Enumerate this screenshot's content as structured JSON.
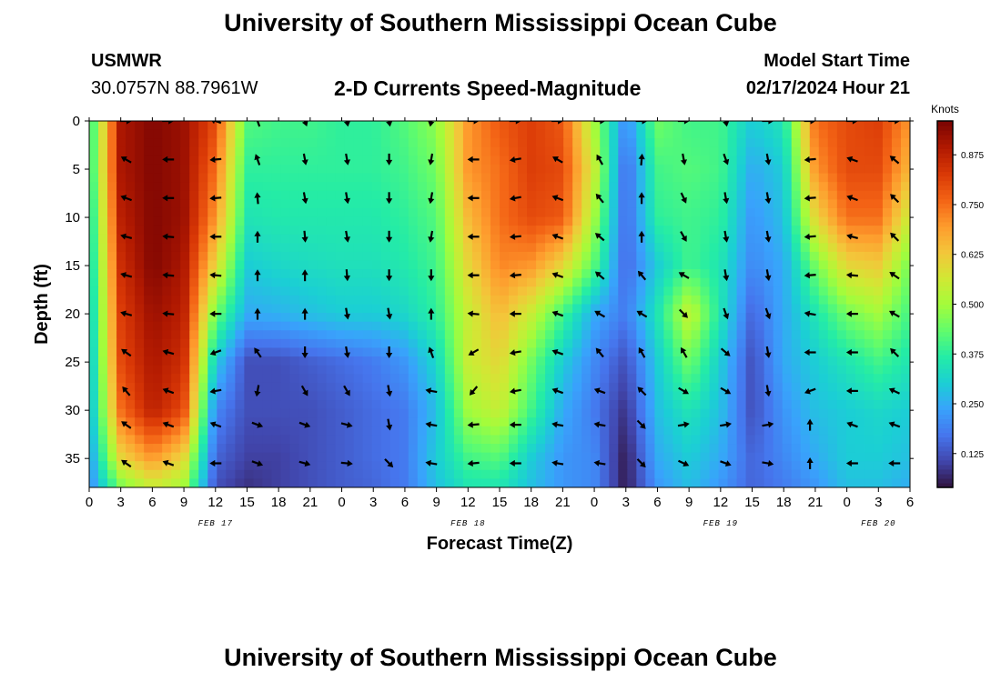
{
  "header": {
    "title": "University of Southern Mississippi Ocean Cube",
    "station": "USMWR",
    "coordinates": "30.0757N  88.7961W",
    "plot_title": "2-D Currents Speed-Magnitude",
    "model_start_label": "Model Start Time",
    "model_start_value": "02/17/2024 Hour 21"
  },
  "footer": {
    "title": "University of Southern Mississippi Ocean Cube"
  },
  "chart_data": {
    "type": "heatmap",
    "title": "2-D Currents Speed-Magnitude",
    "xlabel": "Forecast Time(Z)",
    "ylabel": "Depth (ft)",
    "x_unit": "hours from 00Z Feb 17",
    "xlim": [
      0,
      78
    ],
    "ylim": [
      38,
      0
    ],
    "x_ticks": [
      0,
      3,
      6,
      9,
      12,
      15,
      18,
      21,
      24,
      27,
      30,
      33,
      36,
      39,
      42,
      45,
      48,
      51,
      54,
      57,
      60,
      63,
      66,
      69,
      72,
      75,
      78
    ],
    "x_tick_labels": [
      "0",
      "3",
      "6",
      "9",
      "12",
      "15",
      "18",
      "21",
      "0",
      "3",
      "6",
      "9",
      "12",
      "15",
      "18",
      "21",
      "0",
      "3",
      "6",
      "9",
      "12",
      "15",
      "18",
      "21",
      "0",
      "3",
      "6"
    ],
    "y_ticks": [
      0,
      5,
      10,
      15,
      20,
      25,
      30,
      35
    ],
    "y_tick_labels": [
      "0",
      "5",
      "10",
      "15",
      "20",
      "25",
      "30",
      "35"
    ],
    "date_labels": [
      {
        "text": "FEB 17",
        "hour": 12
      },
      {
        "text": "FEB 18",
        "hour": 36
      },
      {
        "text": "FEB 19",
        "hour": 60
      },
      {
        "text": "FEB 20",
        "hour": 75
      }
    ],
    "colorbar": {
      "label": "Knots",
      "min": 0.04,
      "max": 0.96,
      "ticks": [
        0.125,
        0.25,
        0.375,
        0.5,
        0.625,
        0.75,
        0.875
      ],
      "tick_labels": [
        "0.125",
        "0.250",
        "0.375",
        "0.500",
        "0.625",
        "0.750",
        "0.875"
      ],
      "colors": [
        "#30123b",
        "#4145ab",
        "#4675ed",
        "#39a2fc",
        "#1bcfd4",
        "#24eca6",
        "#61fc6c",
        "#a4fc3b",
        "#d1e834",
        "#f3c63a",
        "#fe9b2d",
        "#f36315",
        "#d93806",
        "#b11901",
        "#7a0403"
      ]
    },
    "speed_field": {
      "units": "knots",
      "times": [
        0,
        3,
        6,
        9,
        12,
        15,
        18,
        21,
        24,
        27,
        30,
        33,
        36,
        39,
        42,
        45,
        48,
        51,
        54,
        57,
        60,
        63,
        66,
        69,
        72,
        75,
        78
      ],
      "depths": [
        0,
        5,
        10,
        15,
        20,
        25,
        30,
        35,
        38
      ],
      "values": [
        [
          0.35,
          0.9,
          0.95,
          0.92,
          0.8,
          0.42,
          0.4,
          0.4,
          0.38,
          0.38,
          0.42,
          0.48,
          0.7,
          0.78,
          0.82,
          0.78,
          0.5,
          0.2,
          0.45,
          0.4,
          0.4,
          0.3,
          0.35,
          0.75,
          0.8,
          0.82,
          0.7
        ],
        [
          0.35,
          0.9,
          0.95,
          0.92,
          0.75,
          0.38,
          0.38,
          0.38,
          0.38,
          0.38,
          0.4,
          0.45,
          0.7,
          0.75,
          0.82,
          0.8,
          0.55,
          0.15,
          0.4,
          0.42,
          0.4,
          0.25,
          0.3,
          0.7,
          0.8,
          0.8,
          0.65
        ],
        [
          0.32,
          0.88,
          0.95,
          0.92,
          0.7,
          0.35,
          0.36,
          0.36,
          0.36,
          0.36,
          0.38,
          0.42,
          0.65,
          0.75,
          0.8,
          0.78,
          0.5,
          0.15,
          0.38,
          0.4,
          0.38,
          0.22,
          0.28,
          0.6,
          0.75,
          0.75,
          0.55
        ],
        [
          0.3,
          0.85,
          0.95,
          0.9,
          0.6,
          0.3,
          0.32,
          0.33,
          0.34,
          0.34,
          0.36,
          0.4,
          0.6,
          0.72,
          0.7,
          0.6,
          0.42,
          0.15,
          0.3,
          0.4,
          0.35,
          0.2,
          0.25,
          0.45,
          0.6,
          0.62,
          0.45
        ],
        [
          0.28,
          0.82,
          0.92,
          0.88,
          0.45,
          0.25,
          0.26,
          0.28,
          0.3,
          0.3,
          0.32,
          0.38,
          0.55,
          0.65,
          0.55,
          0.4,
          0.25,
          0.18,
          0.35,
          0.55,
          0.35,
          0.15,
          0.25,
          0.35,
          0.45,
          0.5,
          0.4
        ],
        [
          0.26,
          0.8,
          0.9,
          0.85,
          0.3,
          0.12,
          0.12,
          0.14,
          0.16,
          0.18,
          0.22,
          0.32,
          0.55,
          0.6,
          0.45,
          0.3,
          0.2,
          0.12,
          0.3,
          0.45,
          0.3,
          0.12,
          0.25,
          0.3,
          0.35,
          0.4,
          0.35
        ],
        [
          0.25,
          0.75,
          0.88,
          0.8,
          0.2,
          0.12,
          0.12,
          0.12,
          0.14,
          0.16,
          0.18,
          0.28,
          0.5,
          0.55,
          0.4,
          0.25,
          0.18,
          0.08,
          0.28,
          0.35,
          0.28,
          0.12,
          0.22,
          0.28,
          0.3,
          0.32,
          0.3
        ],
        [
          0.22,
          0.6,
          0.7,
          0.6,
          0.15,
          0.1,
          0.1,
          0.12,
          0.14,
          0.16,
          0.18,
          0.3,
          0.4,
          0.42,
          0.3,
          0.22,
          0.2,
          0.05,
          0.25,
          0.3,
          0.25,
          0.15,
          0.2,
          0.25,
          0.3,
          0.3,
          0.28
        ],
        [
          0.2,
          0.45,
          0.55,
          0.5,
          0.12,
          0.08,
          0.1,
          0.12,
          0.14,
          0.15,
          0.18,
          0.28,
          0.35,
          0.35,
          0.28,
          0.22,
          0.2,
          0.05,
          0.22,
          0.28,
          0.22,
          0.15,
          0.18,
          0.22,
          0.28,
          0.28,
          0.25
        ]
      ]
    },
    "vectors": {
      "times": [
        3.5,
        7.5,
        12,
        16,
        20.5,
        24.5,
        28.5,
        32.5,
        36.5,
        40.5,
        44.5,
        48.5,
        52.5,
        56.5,
        60.5,
        64.5,
        68.5,
        72.5,
        76.5
      ],
      "depths": [
        0,
        4,
        8,
        12,
        16,
        20,
        24,
        28,
        31.5,
        35.5
      ],
      "unit": "degrees (0 = pointing right, clockwise positive)",
      "angles": [
        [
          0,
          0,
          200,
          250,
          70,
          80,
          80,
          100,
          0,
          0,
          0,
          0,
          0,
          0,
          80,
          0,
          0,
          0,
          0
        ],
        [
          210,
          180,
          175,
          250,
          80,
          80,
          90,
          100,
          180,
          170,
          210,
          240,
          275,
          80,
          70,
          80,
          175,
          200,
          220
        ],
        [
          200,
          180,
          175,
          265,
          80,
          80,
          90,
          100,
          180,
          170,
          200,
          230,
          270,
          65,
          80,
          80,
          175,
          200,
          225
        ],
        [
          195,
          185,
          180,
          270,
          85,
          80,
          90,
          100,
          180,
          175,
          200,
          220,
          270,
          60,
          80,
          80,
          175,
          195,
          225
        ],
        [
          195,
          185,
          185,
          270,
          270,
          85,
          90,
          90,
          180,
          175,
          200,
          220,
          230,
          210,
          80,
          80,
          175,
          185,
          215
        ],
        [
          195,
          185,
          180,
          270,
          270,
          80,
          80,
          270,
          185,
          180,
          200,
          210,
          210,
          45,
          70,
          70,
          190,
          180,
          210
        ],
        [
          215,
          195,
          160,
          235,
          90,
          80,
          90,
          250,
          150,
          170,
          200,
          230,
          240,
          240,
          40,
          80,
          180,
          180,
          225
        ],
        [
          230,
          200,
          170,
          100,
          60,
          60,
          80,
          190,
          130,
          170,
          200,
          200,
          225,
          30,
          30,
          80,
          160,
          180,
          205
        ],
        [
          215,
          200,
          200,
          20,
          20,
          15,
          80,
          190,
          175,
          180,
          190,
          190,
          45,
          350,
          350,
          350,
          270,
          200,
          200
        ],
        [
          215,
          200,
          180,
          20,
          15,
          5,
          45,
          190,
          175,
          180,
          190,
          190,
          45,
          25,
          20,
          10,
          270,
          180,
          180
        ]
      ]
    }
  }
}
